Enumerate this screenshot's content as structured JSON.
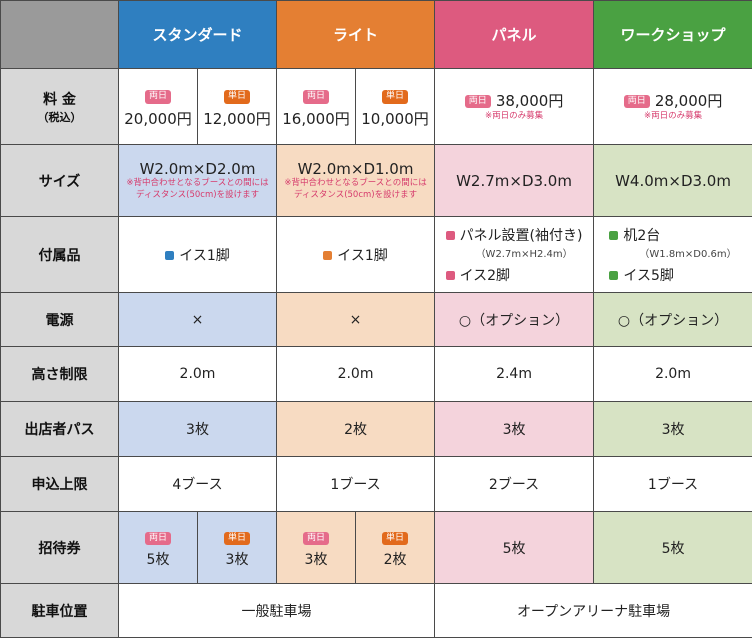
{
  "columns": {
    "standard": "スタンダード",
    "lite": "ライト",
    "panel": "パネル",
    "workshop": "ワークショップ"
  },
  "rows": {
    "price": "料 金",
    "price_sub": "（税込）",
    "size": "サイズ",
    "accessories": "付属品",
    "power": "電源",
    "height": "高さ制限",
    "pass": "出店者パス",
    "limit": "申込上限",
    "invitation": "招待券",
    "parking": "駐車位置"
  },
  "badges": {
    "both_days": "両日",
    "single_day": "単日"
  },
  "price": {
    "standard_both": "20,000円",
    "standard_single": "12,000円",
    "lite_both": "16,000円",
    "lite_single": "10,000円",
    "panel": "38,000円",
    "panel_note": "※両日のみ募集",
    "workshop": "28,000円",
    "workshop_note": "※両日のみ募集"
  },
  "size": {
    "standard": "W2.0m×D2.0m",
    "standard_note_1": "※背中合わせとなるブースとの間には",
    "standard_note_2": "ディスタンス(50cm)を設けます",
    "lite": "W2.0m×D1.0m",
    "lite_note_1": "※背中合わせとなるブースとの間には",
    "lite_note_2": "ディスタンス(50cm)を設けます",
    "panel": "W2.7m×D3.0m",
    "workshop": "W4.0m×D3.0m"
  },
  "accessories": {
    "standard": "イス1脚",
    "lite": "イス1脚",
    "panel_1": "パネル設置(袖付き)",
    "panel_1_sub": "（W2.7m×H2.4m）",
    "panel_2": "イス2脚",
    "workshop_1": "机2台",
    "workshop_1_sub": "（W1.8m×D0.6m）",
    "workshop_2": "イス5脚"
  },
  "power": {
    "standard": "×",
    "lite": "×",
    "panel": "○（オプション）",
    "workshop": "○（オプション）"
  },
  "height": {
    "standard": "2.0m",
    "lite": "2.0m",
    "panel": "2.4m",
    "workshop": "2.0m"
  },
  "pass": {
    "standard": "3枚",
    "lite": "2枚",
    "panel": "3枚",
    "workshop": "3枚"
  },
  "limit": {
    "standard": "4ブース",
    "lite": "1ブース",
    "panel": "2ブース",
    "workshop": "1ブース"
  },
  "invitation": {
    "standard_both": "5枚",
    "standard_single": "3枚",
    "lite_both": "3枚",
    "lite_single": "2枚",
    "panel": "5枚",
    "workshop": "5枚"
  },
  "parking": {
    "left": "一般駐車場",
    "right": "オープンアリーナ駐車場"
  }
}
